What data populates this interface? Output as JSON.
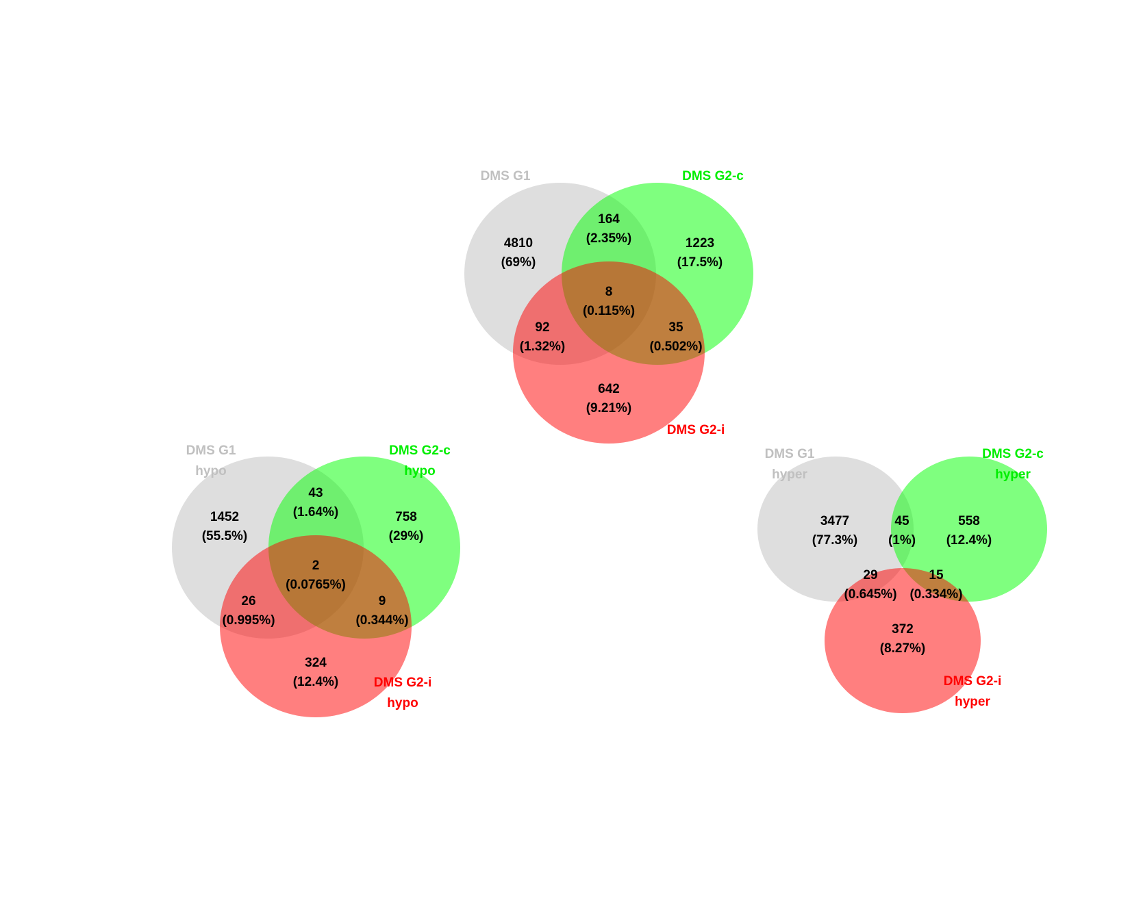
{
  "colors": {
    "set1": "#d3d3d3",
    "set2": "#00ff00",
    "set3": "#ff0000",
    "set1_label": "#c0c0c0",
    "set2_label": "#00ee00",
    "set3_label": "#ff0000",
    "text": "#000000"
  },
  "venns": [
    {
      "sets": [
        {
          "name": "DMS G1",
          "sub": ""
        },
        {
          "name": "DMS G2-c",
          "sub": ""
        },
        {
          "name": "DMS G2-i",
          "sub": ""
        }
      ],
      "regions": [
        {
          "key": "g1_only",
          "count": "4810",
          "pct": "(69%)"
        },
        {
          "key": "g1_g2c",
          "count": "164",
          "pct": "(2.35%)"
        },
        {
          "key": "g2c_only",
          "count": "1223",
          "pct": "(17.5%)"
        },
        {
          "key": "all_three",
          "count": "8",
          "pct": "(0.115%)"
        },
        {
          "key": "g1_g2i",
          "count": "92",
          "pct": "(1.32%)"
        },
        {
          "key": "g2c_g2i",
          "count": "35",
          "pct": "(0.502%)"
        },
        {
          "key": "g2i_only",
          "count": "642",
          "pct": "(9.21%)"
        }
      ]
    },
    {
      "sets": [
        {
          "name": "DMS G1",
          "sub": "hypo"
        },
        {
          "name": "DMS G2-c",
          "sub": "hypo"
        },
        {
          "name": "DMS G2-i",
          "sub": "hypo"
        }
      ],
      "regions": [
        {
          "key": "g1_only",
          "count": "1452",
          "pct": "(55.5%)"
        },
        {
          "key": "g1_g2c",
          "count": "43",
          "pct": "(1.64%)"
        },
        {
          "key": "g2c_only",
          "count": "758",
          "pct": "(29%)"
        },
        {
          "key": "all_three",
          "count": "2",
          "pct": "(0.0765%)"
        },
        {
          "key": "g1_g2i",
          "count": "26",
          "pct": "(0.995%)"
        },
        {
          "key": "g2c_g2i",
          "count": "9",
          "pct": "(0.344%)"
        },
        {
          "key": "g2i_only",
          "count": "324",
          "pct": "(12.4%)"
        }
      ]
    },
    {
      "sets": [
        {
          "name": "DMS G1",
          "sub": "hyper"
        },
        {
          "name": "DMS G2-c",
          "sub": "hyper"
        },
        {
          "name": "DMS G2-i",
          "sub": "hyper"
        }
      ],
      "regions": [
        {
          "key": "g1_only",
          "count": "3477",
          "pct": "(77.3%)"
        },
        {
          "key": "g1_g2c",
          "count": "45",
          "pct": "(1%)"
        },
        {
          "key": "g2c_only",
          "count": "558",
          "pct": "(12.4%)"
        },
        {
          "key": "g1_g2i",
          "count": "29",
          "pct": "(0.645%)"
        },
        {
          "key": "g2c_g2i",
          "count": "15",
          "pct": "(0.334%)"
        },
        {
          "key": "g2i_only",
          "count": "372",
          "pct": "(8.27%)"
        }
      ]
    }
  ]
}
